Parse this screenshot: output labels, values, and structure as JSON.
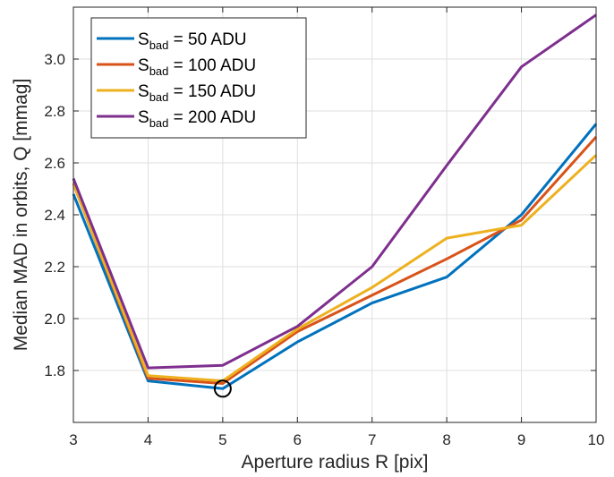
{
  "chart_data": {
    "type": "line",
    "title": "",
    "xlabel": "Aperture radius R [pix]",
    "ylabel": "Median MAD in orbits, Q [mmag]",
    "xlim": [
      3,
      10
    ],
    "ylim": [
      1.6,
      3.2
    ],
    "xticks": [
      "3",
      "4",
      "5",
      "6",
      "7",
      "8",
      "9",
      "10"
    ],
    "yticks": [
      "1.8",
      "2.0",
      "2.2",
      "2.4",
      "2.6",
      "2.8",
      "3.0"
    ],
    "grid": true,
    "legend_position": "top-left",
    "x": [
      3,
      4,
      5,
      6,
      7,
      8,
      9,
      10
    ],
    "series": [
      {
        "name_main": "S",
        "name_sub": "bad",
        "name_rest": " = 50 ADU",
        "color": "#0072BD",
        "values": [
          2.48,
          1.76,
          1.73,
          1.91,
          2.06,
          2.16,
          2.4,
          2.75
        ]
      },
      {
        "name_main": "S",
        "name_sub": "bad",
        "name_rest": " = 100 ADU",
        "color": "#D95319",
        "values": [
          2.52,
          1.77,
          1.75,
          1.95,
          2.09,
          2.23,
          2.38,
          2.7
        ]
      },
      {
        "name_main": "S",
        "name_sub": "bad",
        "name_rest": " = 150 ADU",
        "color": "#EDB120",
        "values": [
          2.52,
          1.78,
          1.76,
          1.96,
          2.12,
          2.31,
          2.36,
          2.63
        ]
      },
      {
        "name_main": "S",
        "name_sub": "bad",
        "name_rest": " = 200 ADU",
        "color": "#7E2F8E",
        "values": [
          2.54,
          1.81,
          1.82,
          1.97,
          2.2,
          2.59,
          2.97,
          3.17
        ]
      }
    ],
    "marker": {
      "x": 5,
      "y": 1.73,
      "shape": "open-circle",
      "color": "#000000"
    }
  }
}
